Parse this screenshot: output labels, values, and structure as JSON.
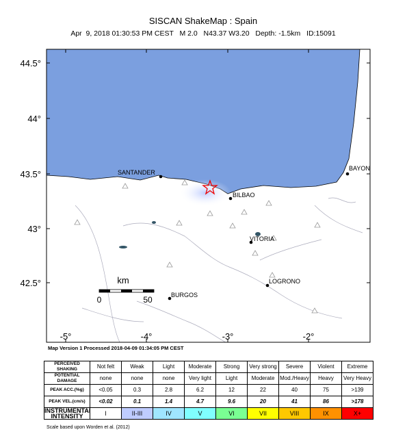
{
  "header": {
    "title": "SISCAN ShakeMap : Spain",
    "subtitle": "Apr  9, 2018 01:30:53 PM CEST   M 2.0   N43.37 W3.20   Depth: -1.5km   ID:15091"
  },
  "map": {
    "lat_labels": [
      "44.5°",
      "44°",
      "43.5°",
      "43°",
      "42.5°"
    ],
    "lon_labels": [
      "-5°",
      "-4°",
      "-3°",
      "-2°"
    ],
    "places": [
      "SANTANDER",
      "BILBAO",
      "BAYON",
      "VITORIA",
      "LOGRONO",
      "BURGOS"
    ],
    "scale": {
      "unit": "km",
      "labels": [
        "0",
        "50"
      ]
    }
  },
  "footer": {
    "processed": "Map Version 1 Processed 2018-04-09 01:34:05 PM CEST",
    "credit": "Scale based upon Worden et al. (2012)"
  },
  "legend": {
    "rows": [
      [
        "PERCEIVED SHAKING",
        "Not felt",
        "Weak",
        "Light",
        "Moderate",
        "Strong",
        "Very strong",
        "Severe",
        "Violent",
        "Extreme"
      ],
      [
        "POTENTIAL DAMAGE",
        "none",
        "none",
        "none",
        "Very light",
        "Light",
        "Moderate",
        "Mod./Heavy",
        "Heavy",
        "Very Heavy"
      ],
      [
        "PEAK ACC.(%g)",
        "<0.05",
        "0.3",
        "2.8",
        "6.2",
        "12",
        "22",
        "40",
        "75",
        ">139"
      ],
      [
        "PEAK VEL.(cm/s)",
        "<0.02",
        "0.1",
        "1.4",
        "4.7",
        "9.6",
        "20",
        "41",
        "86",
        ">178"
      ],
      [
        "INSTRUMENTAL INTENSITY",
        "I",
        "II-III",
        "IV",
        "V",
        "VI",
        "VII",
        "VIII",
        "IX",
        "X+"
      ]
    ],
    "intensity_colors": [
      "#ffffff",
      "#bfccff",
      "#a0e6ff",
      "#80ffff",
      "#7aff93",
      "#ffff00",
      "#ffc800",
      "#ff9100",
      "#ff0000"
    ]
  }
}
